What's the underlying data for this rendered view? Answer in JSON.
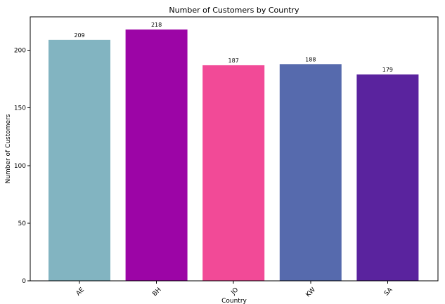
{
  "chart_data": {
    "type": "bar",
    "title": "Number of Customers by Country",
    "xlabel": "Country",
    "ylabel": "Number of Customers",
    "categories": [
      "AE",
      "BH",
      "JO",
      "KW",
      "SA"
    ],
    "values": [
      209,
      218,
      187,
      188,
      179
    ],
    "colors": [
      "#82b4c1",
      "#9c05a6",
      "#f24a97",
      "#566aad",
      "#5a239e"
    ],
    "ylim": [
      0,
      229
    ],
    "yticks": [
      0,
      50,
      100,
      150,
      200
    ],
    "grid": false,
    "legend": "none"
  }
}
